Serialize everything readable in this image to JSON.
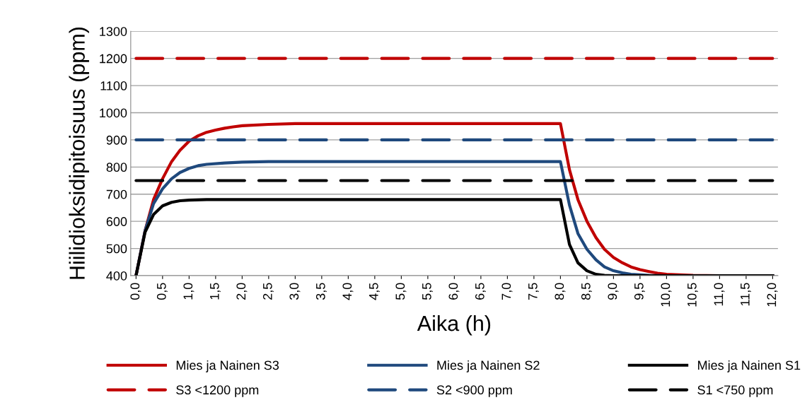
{
  "chart_data": {
    "type": "line",
    "xlabel": "Aika (h)",
    "ylabel": "Hiilidioksidipitoisuus (ppm)",
    "xlim": [
      -0.1,
      12.1
    ],
    "ylim": [
      400,
      1300
    ],
    "xticks": [
      {
        "value": 0,
        "label": "0,0"
      },
      {
        "value": 0.5,
        "label": "0,5"
      },
      {
        "value": 1,
        "label": "1,0"
      },
      {
        "value": 1.5,
        "label": "1,5"
      },
      {
        "value": 2,
        "label": "2,0"
      },
      {
        "value": 2.5,
        "label": "2,5"
      },
      {
        "value": 3,
        "label": "3,0"
      },
      {
        "value": 3.5,
        "label": "3,5"
      },
      {
        "value": 4,
        "label": "4,0"
      },
      {
        "value": 4.5,
        "label": "4,5"
      },
      {
        "value": 5,
        "label": "5,0"
      },
      {
        "value": 5.5,
        "label": "5,5"
      },
      {
        "value": 6,
        "label": "6,0"
      },
      {
        "value": 6.5,
        "label": "6,5"
      },
      {
        "value": 7,
        "label": "7,0"
      },
      {
        "value": 7.5,
        "label": "7,5"
      },
      {
        "value": 8,
        "label": "8,0"
      },
      {
        "value": 8.5,
        "label": "8,5"
      },
      {
        "value": 9,
        "label": "9,0"
      },
      {
        "value": 9.5,
        "label": "9,5"
      },
      {
        "value": 10,
        "label": "10,0"
      },
      {
        "value": 10.5,
        "label": "10,5"
      },
      {
        "value": 11,
        "label": "11,0"
      },
      {
        "value": 11.5,
        "label": "11,5"
      },
      {
        "value": 12,
        "label": "12,0"
      }
    ],
    "yticks": [
      400,
      500,
      600,
      700,
      800,
      900,
      1000,
      1100,
      1200,
      1300
    ],
    "grid": "y",
    "legend": "bottom",
    "marker": "none",
    "series": [
      {
        "name": "Mies ja Nainen S3",
        "color": "#c00000",
        "line_style": "solid",
        "x": [
          0,
          0.17,
          0.33,
          0.5,
          0.67,
          0.83,
          1.0,
          1.17,
          1.33,
          1.5,
          1.67,
          1.83,
          2.0,
          2.5,
          3.0,
          8.0,
          8.17,
          8.33,
          8.5,
          8.67,
          8.83,
          9.0,
          9.17,
          9.33,
          9.5,
          9.67,
          9.83,
          10.0,
          10.5,
          11.0,
          12.0
        ],
        "values": [
          400,
          565,
          680,
          757,
          820,
          862,
          895,
          915,
          928,
          936,
          943,
          948,
          952,
          957,
          960,
          960,
          790,
          680,
          600,
          540,
          497,
          467,
          447,
          432,
          422,
          415,
          409,
          405,
          401,
          400,
          400
        ]
      },
      {
        "name": "Mies ja Nainen S2",
        "color": "#1f497d",
        "line_style": "solid",
        "x": [
          0,
          0.17,
          0.33,
          0.5,
          0.67,
          0.83,
          1.0,
          1.17,
          1.33,
          1.67,
          2.0,
          2.5,
          8.0,
          8.17,
          8.33,
          8.5,
          8.67,
          8.83,
          9.0,
          9.17,
          9.33,
          9.67,
          10.0,
          12.0
        ],
        "values": [
          400,
          565,
          665,
          720,
          757,
          780,
          795,
          805,
          810,
          815,
          818,
          820,
          820,
          660,
          555,
          497,
          458,
          432,
          418,
          410,
          405,
          401,
          400,
          400
        ]
      },
      {
        "name": "Mies ja Nainen S1",
        "color": "#000000",
        "line_style": "solid",
        "x": [
          0,
          0.17,
          0.33,
          0.5,
          0.67,
          0.83,
          1.0,
          1.33,
          8.0,
          8.17,
          8.33,
          8.5,
          8.67,
          8.83,
          9.0,
          12.0
        ],
        "values": [
          400,
          560,
          625,
          657,
          670,
          676,
          678,
          680,
          680,
          515,
          447,
          418,
          405,
          401,
          400,
          400
        ]
      },
      {
        "name": "S3 <1200 ppm",
        "color": "#c00000",
        "line_style": "dashed",
        "x": [
          0,
          12
        ],
        "values": [
          1200,
          1200
        ]
      },
      {
        "name": "S2 <900 ppm",
        "color": "#1f497d",
        "line_style": "dashed",
        "x": [
          0,
          12
        ],
        "values": [
          900,
          900
        ]
      },
      {
        "name": "S1 <750 ppm",
        "color": "#000000",
        "line_style": "dashed",
        "x": [
          0,
          12
        ],
        "values": [
          750,
          750
        ]
      }
    ]
  }
}
